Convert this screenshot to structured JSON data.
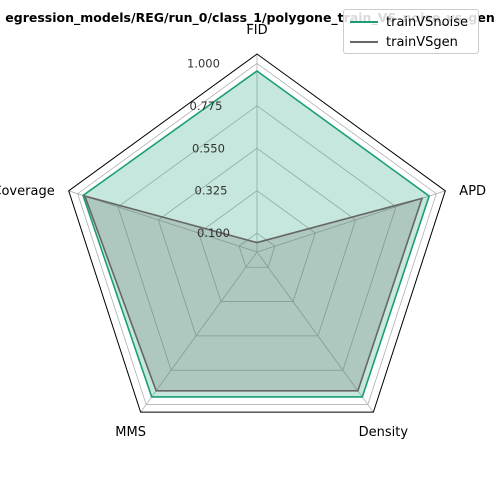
{
  "chart_data": {
    "type": "radar",
    "title": "egression_models/REG/run_0/class_1/polygone_train_VS_noise_vs_gen",
    "axes": [
      "FID",
      "APD",
      "Density",
      "MMS",
      "Coverage"
    ],
    "rlim": [
      0,
      1.05
    ],
    "radial_ticks": [
      0.1,
      0.325,
      0.55,
      0.775,
      1.0
    ],
    "radial_tick_labels": [
      "0.100",
      "0.325",
      "0.550",
      "0.775",
      "1.000"
    ],
    "grid": true,
    "legend_position": "top-right",
    "series": [
      {
        "name": "trainVSnoise",
        "color": "#1b9e77",
        "fill": "#1b9e77",
        "values": [
          0.96,
          0.96,
          0.95,
          0.95,
          0.97
        ]
      },
      {
        "name": "trainVSgen",
        "color": "#666666",
        "fill": "#666666",
        "values": [
          0.05,
          0.92,
          0.91,
          0.91,
          0.96
        ]
      }
    ]
  }
}
